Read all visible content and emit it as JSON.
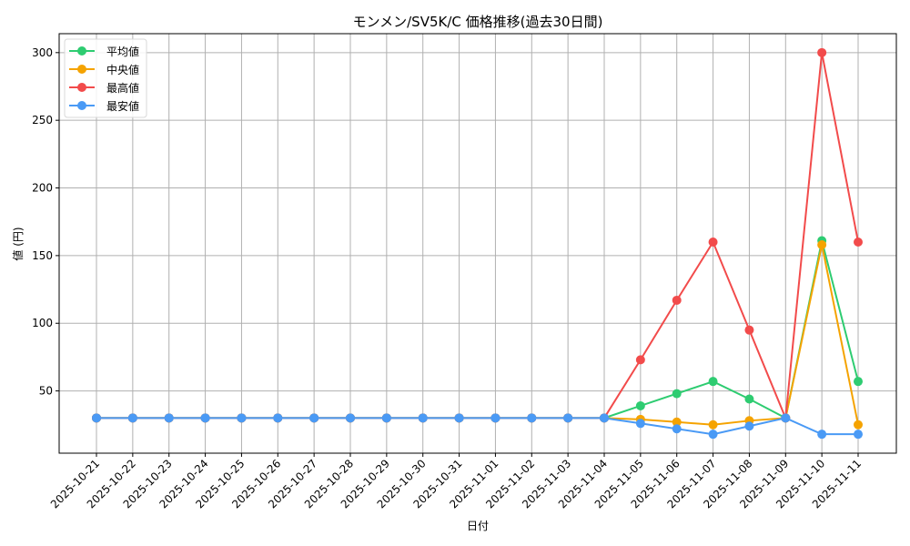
{
  "chart_data": {
    "type": "line",
    "title": "モンメン/SV5K/C 価格推移(過去30日間)",
    "xlabel": "日付",
    "ylabel": "値 (円)",
    "ylim": [
      4,
      314
    ],
    "yticks": [
      50,
      100,
      150,
      200,
      250,
      300
    ],
    "grid": true,
    "legend_position": "upper left",
    "x": [
      "2025-10-21",
      "2025-10-22",
      "2025-10-23",
      "2025-10-24",
      "2025-10-25",
      "2025-10-26",
      "2025-10-27",
      "2025-10-28",
      "2025-10-29",
      "2025-10-30",
      "2025-10-31",
      "2025-11-01",
      "2025-11-02",
      "2025-11-03",
      "2025-11-04",
      "2025-11-05",
      "2025-11-06",
      "2025-11-07",
      "2025-11-08",
      "2025-11-09",
      "2025-11-10",
      "2025-11-11"
    ],
    "series": [
      {
        "name": "平均値",
        "color": "#2ecc71",
        "values": [
          30,
          30,
          30,
          30,
          30,
          30,
          30,
          30,
          30,
          30,
          30,
          30,
          30,
          30,
          30,
          39,
          48,
          57,
          44,
          30,
          161,
          57
        ]
      },
      {
        "name": "中央値",
        "color": "#f5a300",
        "values": [
          30,
          30,
          30,
          30,
          30,
          30,
          30,
          30,
          30,
          30,
          30,
          30,
          30,
          30,
          30,
          29,
          27,
          25,
          28,
          30,
          158,
          25
        ]
      },
      {
        "name": "最高値",
        "color": "#f24b4b",
        "values": [
          30,
          30,
          30,
          30,
          30,
          30,
          30,
          30,
          30,
          30,
          30,
          30,
          30,
          30,
          30,
          73,
          117,
          160,
          95,
          30,
          300,
          160
        ]
      },
      {
        "name": "最安値",
        "color": "#4a9af5",
        "values": [
          30,
          30,
          30,
          30,
          30,
          30,
          30,
          30,
          30,
          30,
          30,
          30,
          30,
          30,
          30,
          26,
          22,
          18,
          24,
          30,
          18,
          18
        ]
      }
    ]
  }
}
